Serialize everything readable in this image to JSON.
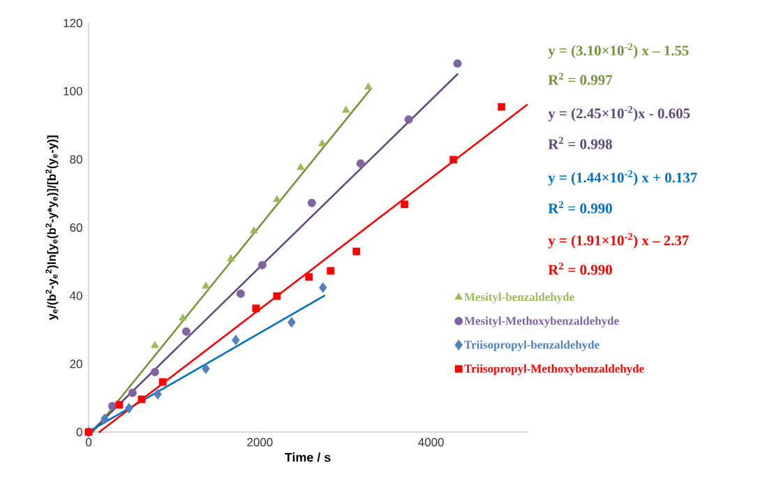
{
  "chart_data": {
    "type": "scatter",
    "xlabel": "Time / s",
    "ylabel": "y$_{e}$/(b$^{2}$-y$_{e}$$^{2}$)ln[y$_{e}$(b$^{2}$-y*y$_{e}$)]/[b$^{2}$(y$_{e}$-y)]",
    "xlim": [
      0,
      5120
    ],
    "ylim": [
      0,
      120
    ],
    "xticks": [
      0,
      2000,
      4000
    ],
    "yticks": [
      0,
      20,
      40,
      60,
      80,
      100,
      120
    ],
    "legend": "right",
    "grid": false,
    "series": [
      {
        "name": "Mesityl-benzaldehyde",
        "marker": "triangle",
        "color": "#9bbb59",
        "x": [
          0,
          774,
          1100,
          1369,
          1662,
          1931,
          2200,
          2477,
          2729,
          3006,
          3267
        ],
        "values": [
          0,
          25.4,
          33.4,
          42.8,
          50.8,
          59,
          68.2,
          77.6,
          84.6,
          94.4,
          101.2
        ]
      },
      {
        "name": "Mesityl-Methoxybenzaldehyde",
        "marker": "circle",
        "color": "#8064a2",
        "x": [
          0,
          277,
          513,
          774,
          1140,
          1776,
          2028,
          2607,
          3177,
          3739,
          4309
        ],
        "values": [
          0,
          7.6,
          11.5,
          17.6,
          29.5,
          40.6,
          49,
          67.2,
          78.8,
          91.7,
          108.1
        ]
      },
      {
        "name": "Triisopropyl-benzaldehyde",
        "marker": "diamond",
        "color": "#4f81bd",
        "x": [
          0,
          187,
          472,
          807,
          1369,
          1719,
          2371,
          2737
        ],
        "values": [
          0,
          3.9,
          7.0,
          11.1,
          18.6,
          27.0,
          32.2,
          42.4
        ]
      },
      {
        "name": "Triisopropyl-Methoxybenzaldehyde",
        "marker": "square",
        "color": "#ff0000",
        "x": [
          0,
          358,
          620,
          866,
          1955,
          2200,
          2574,
          2827,
          3128,
          3690,
          4261,
          4823
        ],
        "values": [
          0,
          8.0,
          9.6,
          14.7,
          36.3,
          39.9,
          45.5,
          47.3,
          53.0,
          66.8,
          79.9,
          95.4
        ]
      },
      {
        "type": "line",
        "line_style": "solid",
        "color": "#77933c",
        "x": [
          50,
          3300
        ],
        "values": [
          0,
          100.8
        ]
      },
      {
        "type": "line",
        "line_style": "solid",
        "color": "#604a7b",
        "x": [
          25,
          4309
        ],
        "values": [
          0,
          105
        ]
      },
      {
        "type": "line",
        "line_style": "solid",
        "color": "#0070c0",
        "x": [
          0,
          2754
        ],
        "values": [
          0.1,
          40
        ]
      },
      {
        "type": "line",
        "line_style": "solid",
        "color": "#ff0000",
        "x": [
          124,
          5120
        ],
        "values": [
          0,
          96
        ]
      }
    ],
    "annotations": [
      "y = (3.10×10$^{-2}$) x – 1.55",
      "R$^{2}$ = 0.997",
      "y = (2.45×10$^{-2}$)x - 0.605",
      "R$^{2}$ = 0.998",
      "y = (1.44×10$^{-2}$) x + 0.137",
      "R$^{2}$ = 0.990",
      "y = (1.91×10$^{-2}$) x – 2.37",
      "R$^{2}$ = 0.990"
    ]
  }
}
